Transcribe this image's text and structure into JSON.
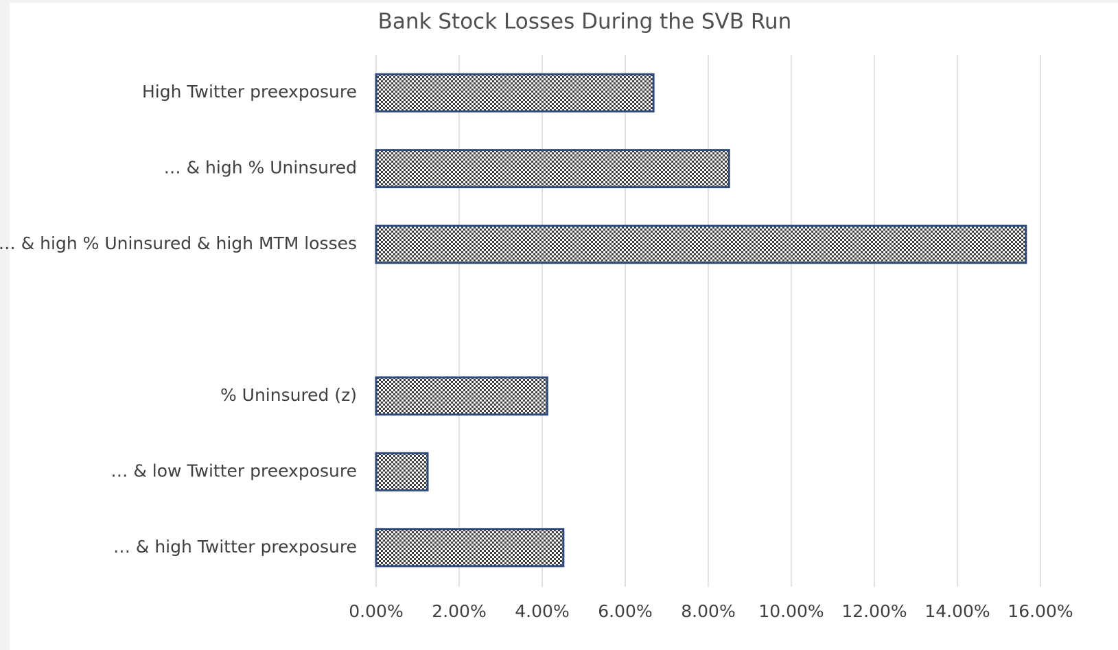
{
  "chart_data": {
    "type": "barh",
    "title": "Bank Stock Losses During the SVB Run",
    "categories": [
      "High Twitter preexposure",
      "… & high % Uninsured",
      "… & high % Uninsured & high MTM losses",
      null,
      "% Uninsured (z)",
      "… & low Twitter preexposure",
      "… & high Twitter prexposure"
    ],
    "values": [
      6.68,
      8.5,
      15.65,
      null,
      4.12,
      1.24,
      4.51
    ],
    "color": "#2e4a7d",
    "xlim": [
      0,
      16
    ],
    "xticks": [
      {
        "value": 0,
        "label": "0.00%"
      },
      {
        "value": 2,
        "label": "2.00%"
      },
      {
        "value": 4,
        "label": "4.00%"
      },
      {
        "value": 6,
        "label": "6.00%"
      },
      {
        "value": 8,
        "label": "8.00%"
      },
      {
        "value": 10,
        "label": "10.00%"
      },
      {
        "value": 12,
        "label": "12.00%"
      },
      {
        "value": 14,
        "label": "14.00%"
      },
      {
        "value": 16,
        "label": "16.00%"
      }
    ],
    "grid": true
  }
}
